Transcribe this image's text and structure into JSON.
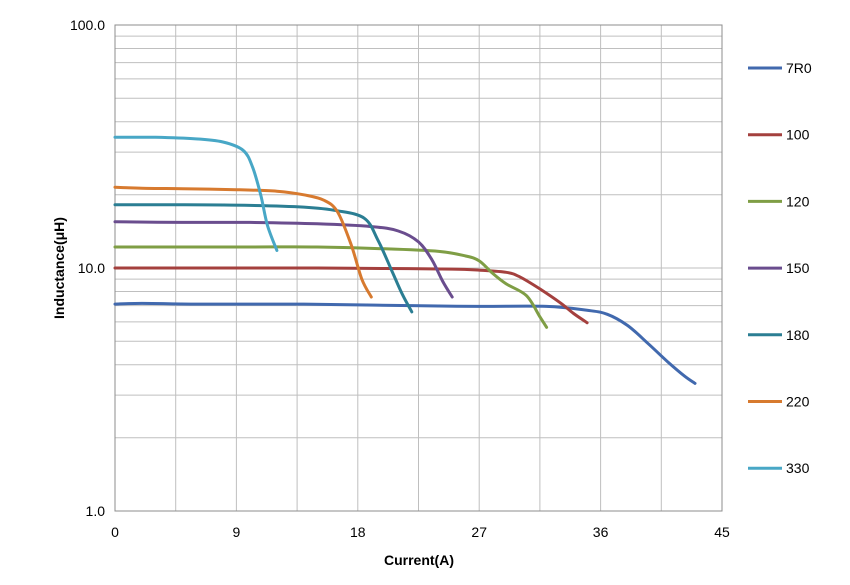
{
  "chart_data": {
    "type": "line",
    "title": "",
    "xlabel": "Current(A)",
    "ylabel": "Inductance(μH)",
    "xlim": [
      0,
      45
    ],
    "ylim": [
      1.0,
      100.0
    ],
    "yscale": "log",
    "grid": true,
    "legend_position": "right",
    "x_ticks": [
      "0",
      "9",
      "18",
      "27",
      "36",
      "45"
    ],
    "y_ticks": [
      "1.0",
      "10.0",
      "100.0"
    ],
    "series": [
      {
        "name": "7R0",
        "color": "#4169AE",
        "x": [
          0,
          2,
          6,
          10,
          14,
          18,
          22,
          27,
          32,
          35,
          36.5,
          38,
          39.5,
          41,
          42.2,
          43
        ],
        "y": [
          7.1,
          7.15,
          7.1,
          7.1,
          7.1,
          7.05,
          7.0,
          6.95,
          6.95,
          6.7,
          6.45,
          5.8,
          4.9,
          4.1,
          3.6,
          3.35
        ]
      },
      {
        "name": "100",
        "color": "#A4403E",
        "x": [
          0,
          5,
          10,
          15,
          20,
          25,
          27,
          29,
          30,
          31.5,
          33,
          34,
          35
        ],
        "y": [
          10.0,
          10.0,
          10.0,
          10.0,
          9.95,
          9.9,
          9.8,
          9.6,
          9.2,
          8.2,
          7.2,
          6.5,
          5.95
        ]
      },
      {
        "name": "120",
        "color": "#7F9E45",
        "x": [
          0,
          5,
          10,
          15,
          20,
          24,
          26,
          27,
          28,
          29,
          30.5,
          31.5,
          32
        ],
        "y": [
          12.2,
          12.2,
          12.2,
          12.2,
          12.0,
          11.7,
          11.2,
          10.7,
          9.5,
          8.6,
          7.7,
          6.3,
          5.7
        ]
      },
      {
        "name": "150",
        "color": "#6A4D8E",
        "x": [
          0,
          5,
          10,
          15,
          19,
          21,
          22.5,
          23.5,
          24.3,
          25
        ],
        "y": [
          15.5,
          15.4,
          15.4,
          15.2,
          14.8,
          14.2,
          12.8,
          10.8,
          8.8,
          7.6
        ]
      },
      {
        "name": "180",
        "color": "#2B7E93",
        "x": [
          0,
          5,
          10,
          14,
          16.5,
          18.5,
          19.5,
          20.5,
          21.3,
          22
        ],
        "y": [
          18.2,
          18.2,
          18.1,
          17.8,
          17.2,
          16.0,
          13.0,
          9.8,
          7.8,
          6.6
        ]
      },
      {
        "name": "220",
        "color": "#D77A2F",
        "x": [
          0,
          2,
          5,
          9,
          12,
          14,
          15.5,
          16.5,
          17.5,
          18.3,
          19
        ],
        "y": [
          21.5,
          21.3,
          21.2,
          21.0,
          20.7,
          20.0,
          19.0,
          17.0,
          12.5,
          9.0,
          7.6
        ]
      },
      {
        "name": "330",
        "color": "#48A7C6",
        "x": [
          0,
          3,
          6,
          8,
          9.5,
          10.2,
          10.8,
          11.3,
          12
        ],
        "y": [
          34.5,
          34.5,
          34.0,
          33.0,
          30.5,
          26.0,
          20.0,
          15.0,
          11.8
        ]
      }
    ]
  }
}
